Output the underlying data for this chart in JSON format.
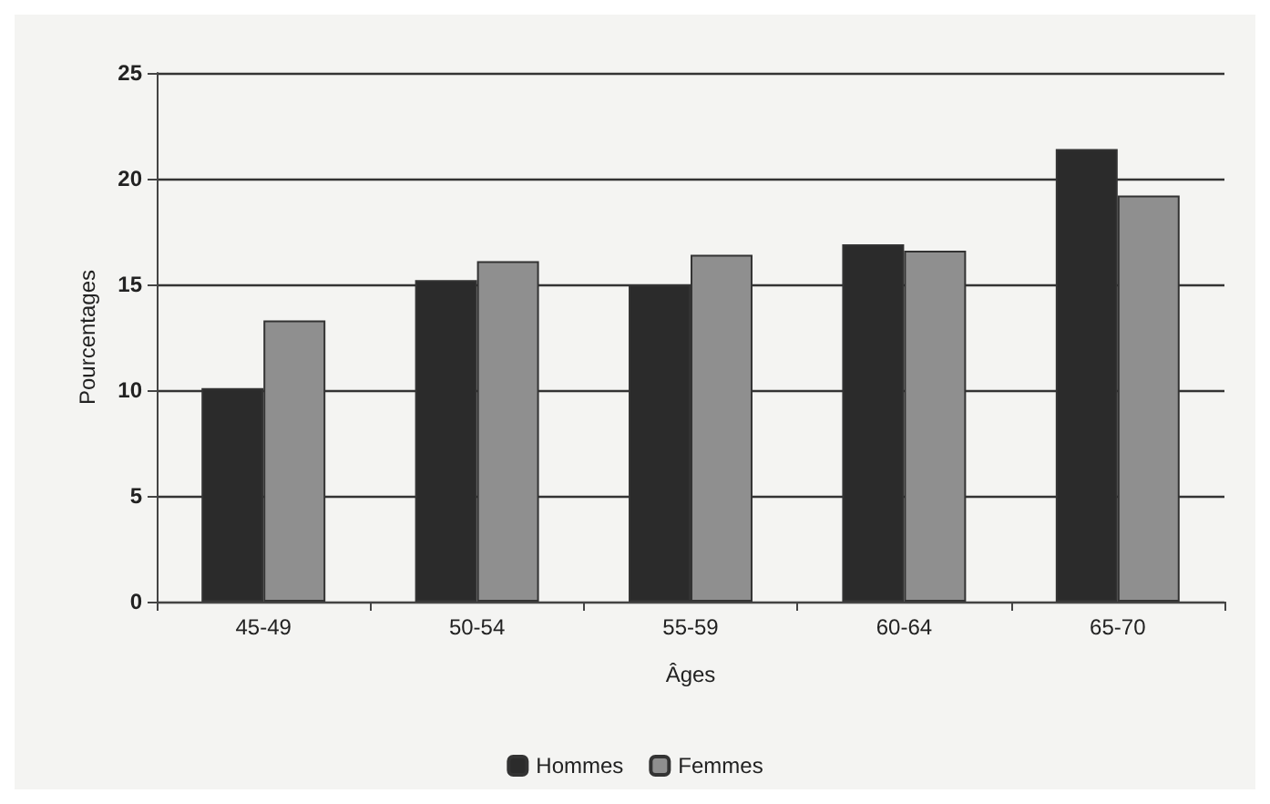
{
  "chart_data": {
    "type": "bar",
    "xlabel": "Âges",
    "ylabel": "Pourcentages",
    "categories": [
      "45-49",
      "50-54",
      "55-59",
      "60-64",
      "65-70"
    ],
    "series": [
      {
        "name": "Hommes",
        "color": "#2b2b2b",
        "values": [
          10.1,
          15.2,
          15.0,
          16.9,
          21.4
        ]
      },
      {
        "name": "Femmes",
        "color": "#8f8f8f",
        "values": [
          13.3,
          16.1,
          16.4,
          16.6,
          19.2
        ]
      }
    ],
    "ylim": [
      0,
      25
    ],
    "yticks": [
      0,
      5,
      10,
      15,
      20,
      25
    ],
    "grid": "y",
    "legend": "bottom"
  }
}
